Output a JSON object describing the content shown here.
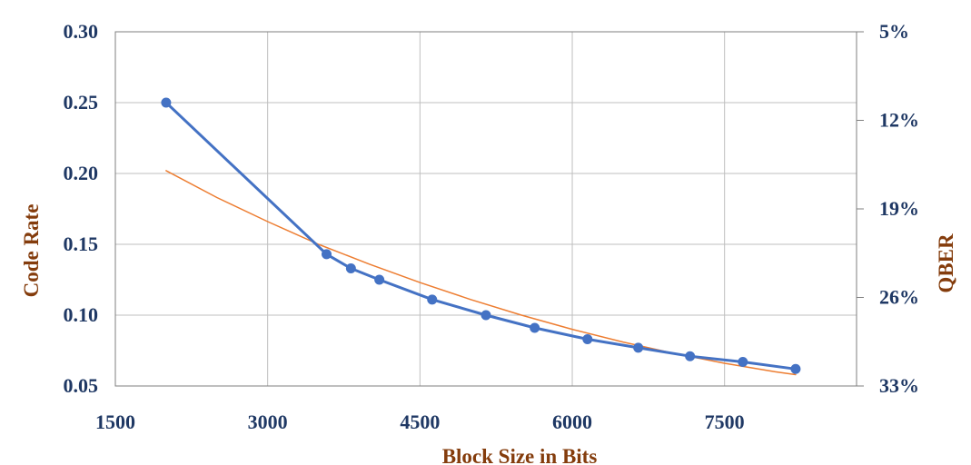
{
  "chart_data": {
    "type": "line",
    "xlabel": "Block Size in Bits",
    "ylabel": "Code Rate",
    "y2label": "QBER",
    "xlim": [
      1500,
      8800
    ],
    "ylim": [
      0.05,
      0.3
    ],
    "y2lim": [
      33,
      5
    ],
    "x_ticks": [
      "1500",
      "3000",
      "4500",
      "6000",
      "7500"
    ],
    "y_ticks": [
      "0.05",
      "0.10",
      "0.15",
      "0.20",
      "0.25",
      "0.30"
    ],
    "y2_ticks": [
      "33%",
      "26%",
      "19%",
      "12%",
      "5%"
    ],
    "grid": true,
    "series": [
      {
        "color": "#4472c4",
        "markers": true,
        "x": [
          2000,
          3580,
          3820,
          4100,
          4620,
          5150,
          5630,
          6150,
          6650,
          7160,
          7680,
          8200
        ],
        "y": [
          0.25,
          0.143,
          0.133,
          0.125,
          0.111,
          0.1,
          0.091,
          0.083,
          0.077,
          0.071,
          0.067,
          0.062
        ]
      },
      {
        "color": "#ed7d31",
        "markers": false,
        "trendline": true,
        "x": [
          2000,
          2500,
          3000,
          3500,
          4000,
          4500,
          5000,
          5500,
          6000,
          6500,
          7000,
          7500,
          8000,
          8200
        ],
        "y": [
          0.202,
          0.183,
          0.166,
          0.15,
          0.136,
          0.123,
          0.111,
          0.1,
          0.09,
          0.081,
          0.073,
          0.066,
          0.06,
          0.058
        ]
      }
    ]
  }
}
